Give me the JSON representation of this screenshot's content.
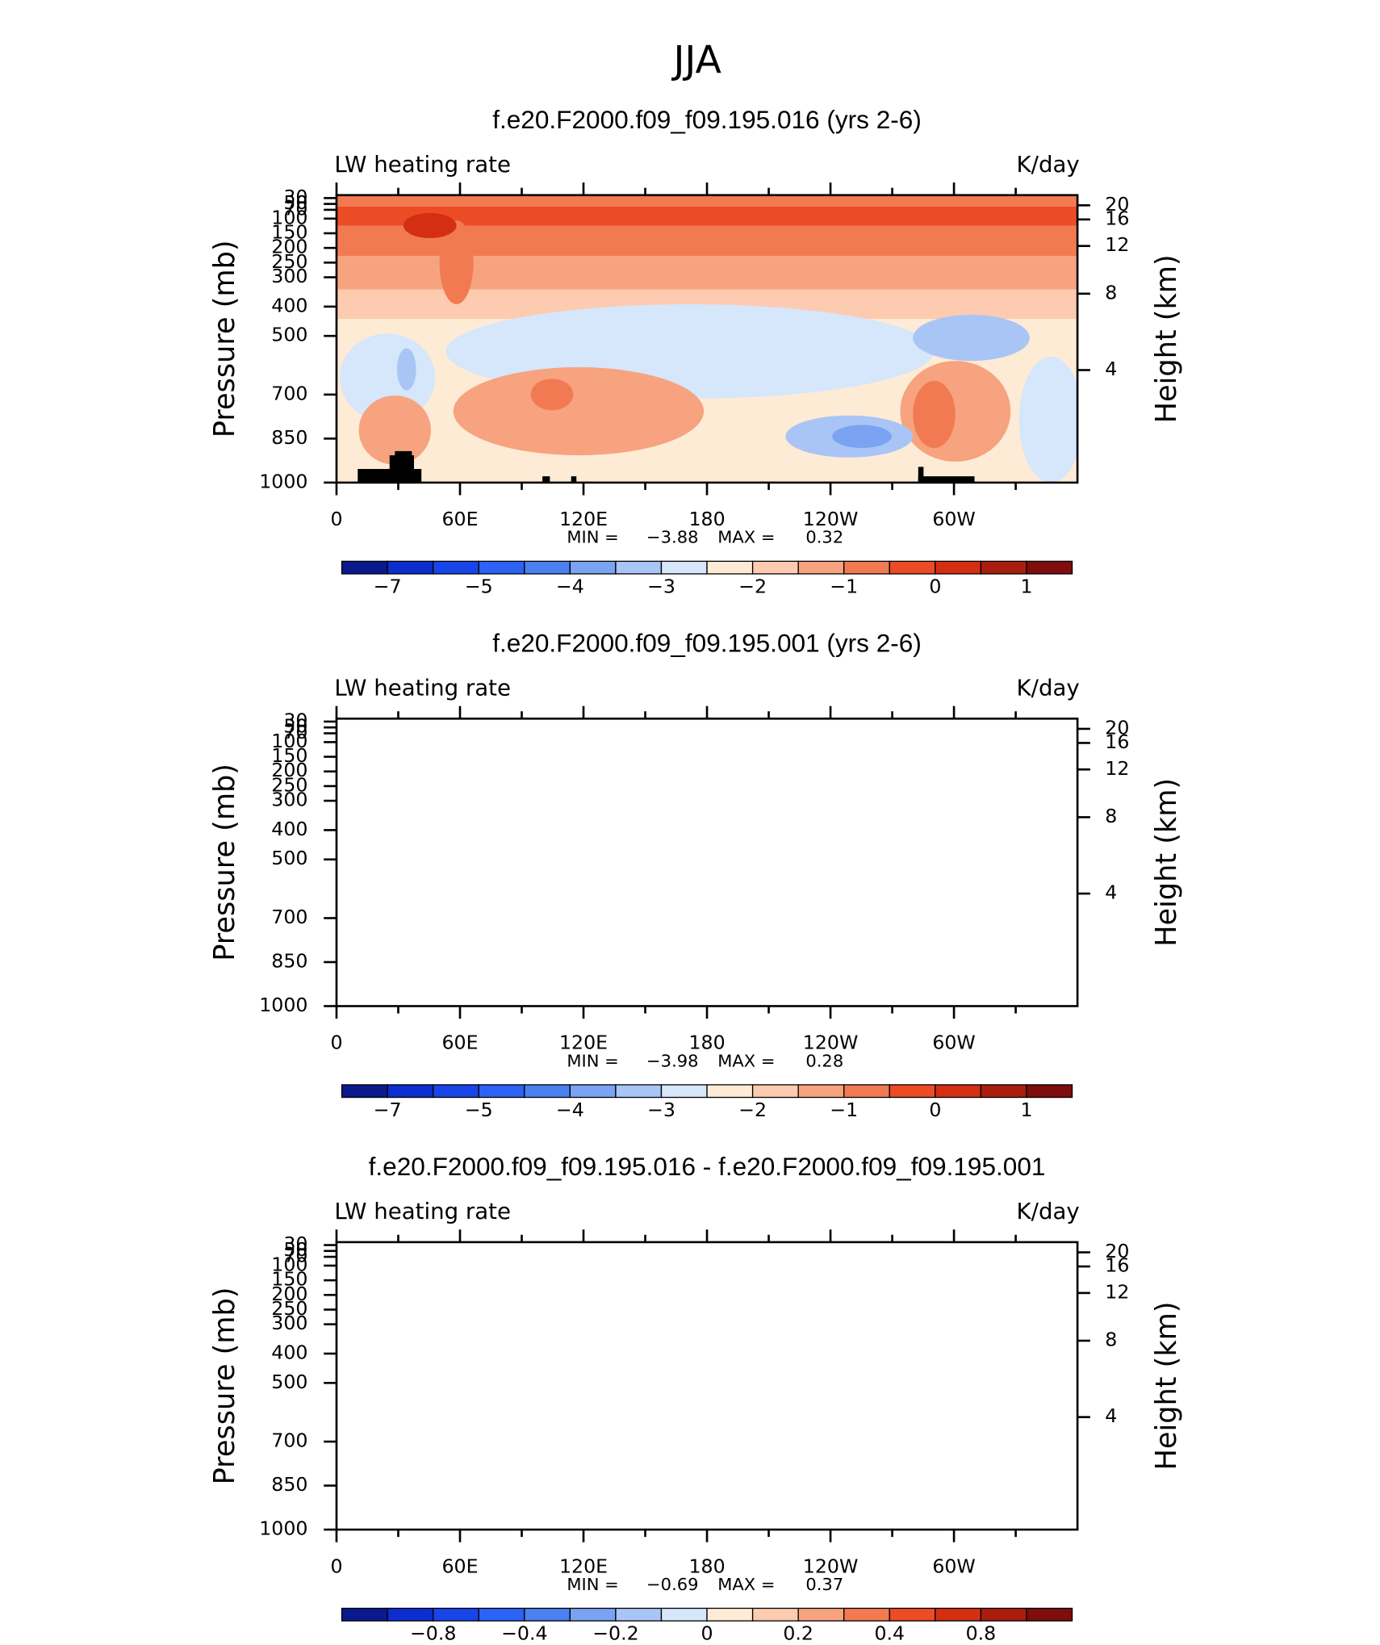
{
  "title": "JJA",
  "chart_data": [
    {
      "type": "contour",
      "title": "f.e20.F2000.f09_f09.195.016 (yrs 2-6)",
      "left_label": "LW heating rate",
      "right_label": "K/day",
      "ylabel": "Pressure (mb)",
      "y2label": "Height (km)",
      "xlim": [
        0,
        360
      ],
      "xticks": [
        0,
        {
          "value": 60,
          "label": "60E"
        },
        {
          "value": 120,
          "label": "120E"
        },
        180,
        {
          "value": 240,
          "label": "120W"
        },
        {
          "value": 300,
          "label": "60W"
        }
      ],
      "xminor": [
        30,
        90,
        150,
        210,
        270,
        330
      ],
      "ylim": [
        1000,
        20
      ],
      "yticks": [
        30,
        50,
        70,
        100,
        150,
        200,
        250,
        300,
        400,
        500,
        700,
        850,
        1000
      ],
      "y2ticks": [
        20,
        16,
        12,
        8,
        4
      ],
      "min_label": "MIN =",
      "min": -3.88,
      "max_label": "MAX =",
      "max": 0.32,
      "levels": [
        -7,
        -6,
        -5,
        -4.5,
        -4,
        -3.5,
        -3,
        -2.5,
        -2,
        -1.5,
        -1,
        -0.5,
        0,
        0.5,
        1
      ],
      "colorbar_ticks": [
        -7,
        -5,
        -4,
        -3,
        -2,
        -1,
        0,
        1
      ],
      "colors": [
        "#0a1a8c",
        "#0d2ecf",
        "#1745e8",
        "#2c63f5",
        "#4a80f0",
        "#7aa3f2",
        "#a9c5f6",
        "#d6e6fb",
        "#fdebd6",
        "#fccbb0",
        "#f7a37f",
        "#f27a52",
        "#ec4c25",
        "#d42f12",
        "#a91e0f",
        "#7f0d0d"
      ]
    },
    {
      "type": "contour",
      "title": "f.e20.F2000.f09_f09.195.001 (yrs 2-6)",
      "left_label": "LW heating rate",
      "right_label": "K/day",
      "ylabel": "Pressure (mb)",
      "y2label": "Height (km)",
      "xlim": [
        0,
        360
      ],
      "xticks": [
        0,
        {
          "value": 60,
          "label": "60E"
        },
        {
          "value": 120,
          "label": "120E"
        },
        180,
        {
          "value": 240,
          "label": "120W"
        },
        {
          "value": 300,
          "label": "60W"
        }
      ],
      "xminor": [
        30,
        90,
        150,
        210,
        270,
        330
      ],
      "ylim": [
        1000,
        20
      ],
      "yticks": [
        30,
        50,
        70,
        100,
        150,
        200,
        250,
        300,
        400,
        500,
        700,
        850,
        1000
      ],
      "y2ticks": [
        20,
        16,
        12,
        8,
        4
      ],
      "min_label": "MIN =",
      "min": -3.98,
      "max_label": "MAX =",
      "max": 0.28,
      "levels": [
        -7,
        -6,
        -5,
        -4.5,
        -4,
        -3.5,
        -3,
        -2.5,
        -2,
        -1.5,
        -1,
        -0.5,
        0,
        0.5,
        1
      ],
      "colorbar_ticks": [
        -7,
        -5,
        -4,
        -3,
        -2,
        -1,
        0,
        1
      ],
      "colors": [
        "#0a1a8c",
        "#0d2ecf",
        "#1745e8",
        "#2c63f5",
        "#4a80f0",
        "#7aa3f2",
        "#a9c5f6",
        "#d6e6fb",
        "#fdebd6",
        "#fccbb0",
        "#f7a37f",
        "#f27a52",
        "#ec4c25",
        "#d42f12",
        "#a91e0f",
        "#7f0d0d"
      ]
    },
    {
      "type": "contour-diff",
      "title": "f.e20.F2000.f09_f09.195.016 - f.e20.F2000.f09_f09.195.001",
      "left_label": "LW heating rate",
      "right_label": "K/day",
      "ylabel": "Pressure (mb)",
      "y2label": "Height (km)",
      "xlim": [
        0,
        360
      ],
      "xticks": [
        0,
        {
          "value": 60,
          "label": "60E"
        },
        {
          "value": 120,
          "label": "120E"
        },
        180,
        {
          "value": 240,
          "label": "120W"
        },
        {
          "value": 300,
          "label": "60W"
        }
      ],
      "xminor": [
        30,
        90,
        150,
        210,
        270,
        330
      ],
      "ylim": [
        1000,
        20
      ],
      "yticks": [
        30,
        50,
        70,
        100,
        150,
        200,
        250,
        300,
        400,
        500,
        700,
        850,
        1000
      ],
      "y2ticks": [
        20,
        16,
        12,
        8,
        4
      ],
      "min_label": "MIN =",
      "min": -0.69,
      "max_label": "MAX =",
      "max": 0.37,
      "levels": [
        -1,
        -0.8,
        -0.6,
        -0.4,
        -0.3,
        -0.2,
        -0.1,
        0,
        0.1,
        0.2,
        0.3,
        0.4,
        0.6,
        0.8,
        1
      ],
      "colorbar_ticks": [
        -0.8,
        -0.4,
        -0.2,
        0,
        0.2,
        0.4,
        0.8
      ],
      "colors": [
        "#0a1a8c",
        "#0d2ecf",
        "#1745e8",
        "#2c63f5",
        "#4a80f0",
        "#7aa3f2",
        "#a9c5f6",
        "#d6e6fb",
        "#fdebd6",
        "#fccbb0",
        "#f7a37f",
        "#f27a52",
        "#ec4c25",
        "#d42f12",
        "#a91e0f",
        "#7f0d0d"
      ]
    }
  ]
}
